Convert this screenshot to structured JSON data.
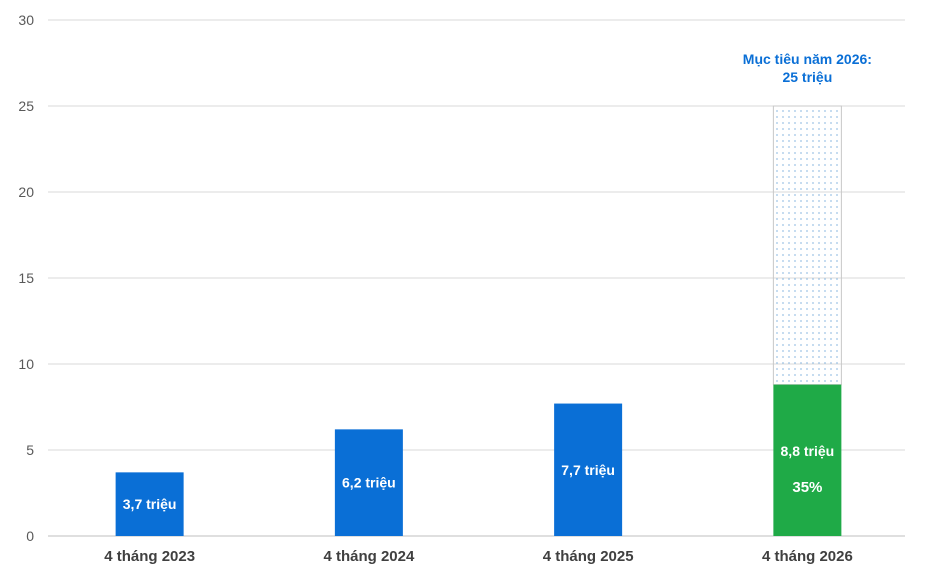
{
  "chart_data": {
    "type": "bar",
    "categories": [
      "4 tháng 2023",
      "4 tháng 2024",
      "4 tháng 2025",
      "4 tháng 2026"
    ],
    "values": [
      3.7,
      6.2,
      7.7,
      8.8
    ],
    "value_labels": [
      "3,7 triệu",
      "6,2 triệu",
      "7,7 triệu",
      "8,8 triệu"
    ],
    "ylim": [
      0,
      30
    ],
    "yticks": [
      0,
      5,
      10,
      15,
      20,
      25,
      30
    ],
    "grid": true,
    "legend": "none",
    "target": {
      "category": "4 tháng 2026",
      "value": 25,
      "label_line1": "Mục tiêu năm 2026:",
      "label_line2": "25 triệu",
      "percent_label": "35%"
    },
    "colors": {
      "bar": "#0a6fd6",
      "highlight_bar": "#1faa47",
      "target_text": "#0a6fd6",
      "target_dots": "#9cc3e6",
      "target_border": "#c8c8c8"
    }
  }
}
